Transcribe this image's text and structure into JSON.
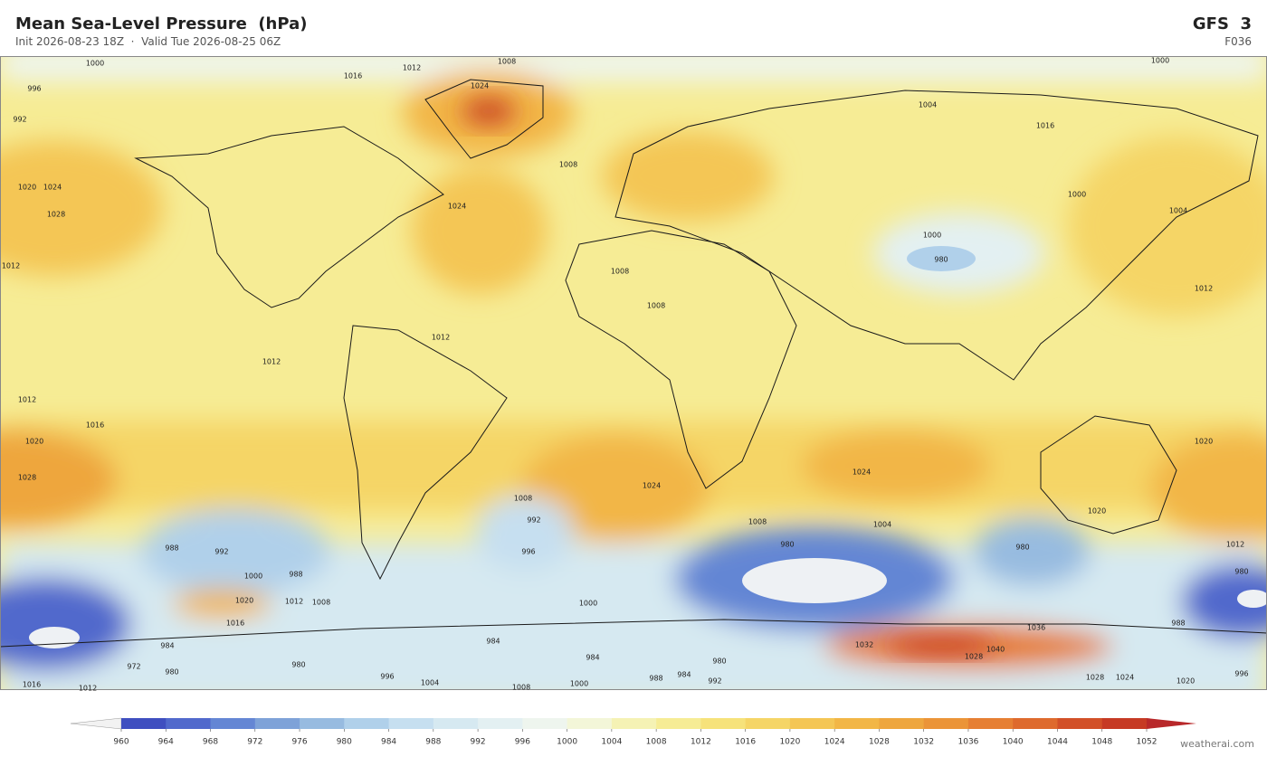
{
  "header": {
    "title": "Mean Sea-Level Pressure  (hPa)",
    "subtitle": "Init 2026-08-23 18Z  ·  Valid Tue 2026-08-25 06Z",
    "model": "GFS  3",
    "forecast_hour": "F036"
  },
  "map": {
    "contour_labels": [
      1000,
      1012,
      1008,
      1016,
      1024,
      1000,
      996,
      992,
      1004,
      1016,
      1008,
      1028,
      1020,
      1024,
      1024,
      1012,
      1000,
      1004,
      1000,
      980,
      1008,
      1008,
      1012,
      1012,
      1012,
      1012,
      1016,
      1020,
      1028,
      1024,
      1024,
      1020,
      1020,
      1008,
      992,
      996,
      1008,
      1004,
      1012,
      992,
      988,
      1000,
      988,
      1020,
      1012,
      1008,
      1000,
      1016,
      980,
      980,
      1036,
      1040,
      1032,
      1028,
      984,
      984,
      980,
      980,
      980,
      972,
      996,
      1004,
      1008,
      1000,
      988,
      984,
      992,
      1028,
      1024,
      1020,
      996,
      1016,
      1012,
      980,
      988,
      984
    ]
  },
  "colorbar": {
    "ticks": [
      960,
      964,
      968,
      972,
      976,
      980,
      984,
      988,
      992,
      996,
      1000,
      1004,
      1008,
      1012,
      1016,
      1020,
      1024,
      1028,
      1032,
      1036,
      1040,
      1044,
      1048,
      1052
    ],
    "colors": [
      "#3f4fc0",
      "#5169cc",
      "#6486d4",
      "#7ea2d8",
      "#97bbe0",
      "#b0d0ea",
      "#c6dff0",
      "#d6e9f1",
      "#e3f0f2",
      "#eef5ee",
      "#f3f6d8",
      "#f5f2b4",
      "#f6ec95",
      "#f6e27a",
      "#f5d566",
      "#f4c655",
      "#f2b646",
      "#eea63e",
      "#eb9438",
      "#e67f33",
      "#de6a2d",
      "#d25028",
      "#c63a24"
    ],
    "under_color": "#f2f2f2",
    "over_color": "#b8282a"
  },
  "footer": {
    "credit": "weatherai.com"
  }
}
